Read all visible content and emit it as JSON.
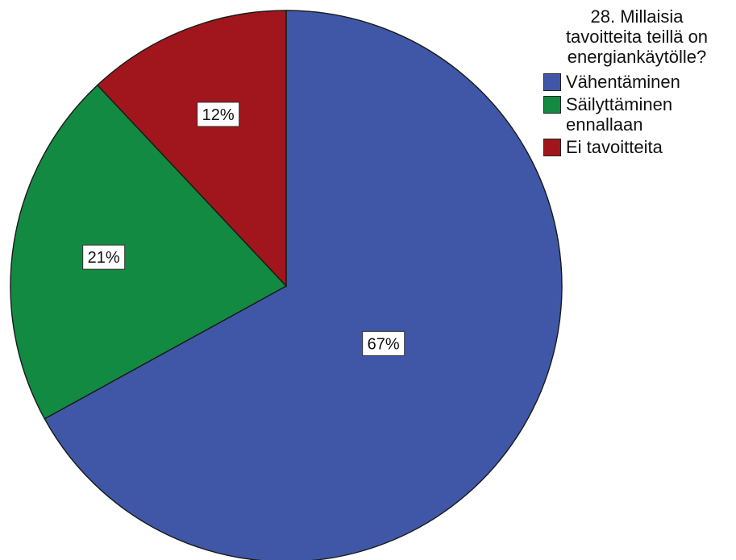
{
  "chart_data": {
    "type": "pie",
    "title": "28. Millaisia tavoitteita teillä on energiankäytölle?",
    "title_lines": [
      "28. Millaisia",
      "tavoitteita teillä on",
      "energiankäytölle?"
    ],
    "legend_position": "top-right",
    "slices": [
      {
        "name": "Vähentäminen",
        "legend_lines": [
          "Vähentäminen"
        ],
        "value": 67,
        "label": "67%",
        "color": "#3f57a6"
      },
      {
        "name": "Säilyttäminen ennallaan",
        "legend_lines": [
          "Säilyttäminen",
          "ennallaan"
        ],
        "value": 21,
        "label": "21%",
        "color": "#138a42"
      },
      {
        "name": "Ei tavoitteita",
        "legend_lines": [
          "Ei tavoitteita"
        ],
        "value": 12,
        "label": "12%",
        "color": "#a0161c"
      }
    ]
  }
}
